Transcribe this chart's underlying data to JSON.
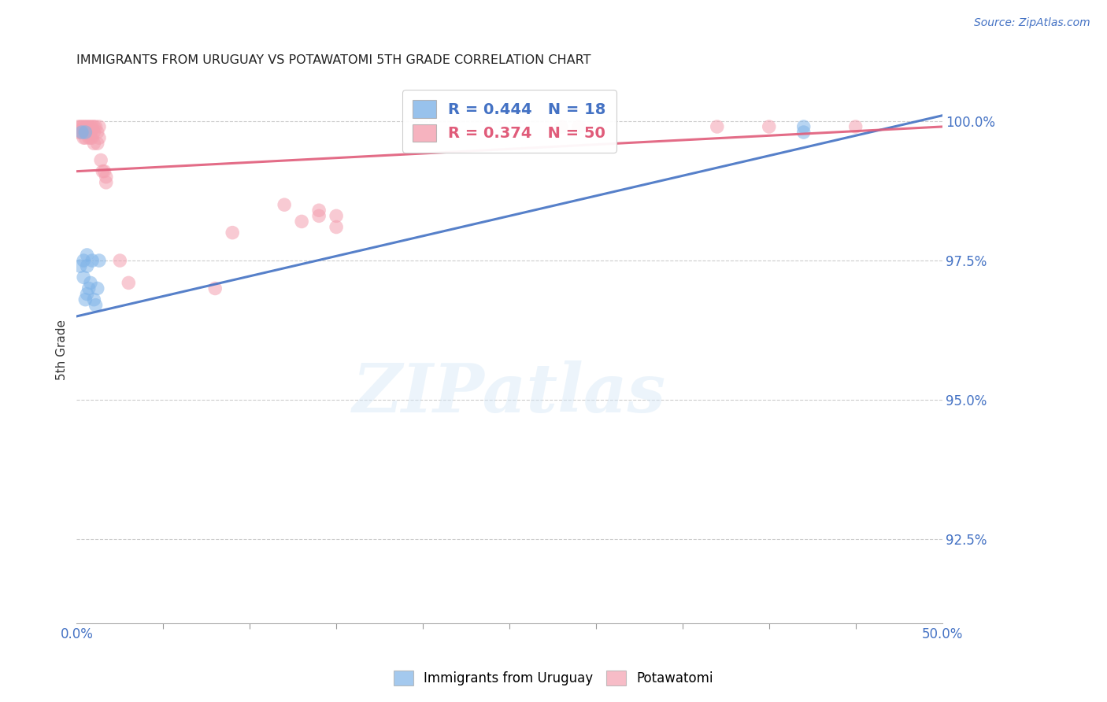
{
  "title": "IMMIGRANTS FROM URUGUAY VS POTAWATOMI 5TH GRADE CORRELATION CHART",
  "source": "Source: ZipAtlas.com",
  "ylabel": "5th Grade",
  "xlim": [
    0.0,
    0.5
  ],
  "ylim": [
    0.91,
    1.008
  ],
  "xtick_positions": [
    0.0,
    0.5
  ],
  "xtick_labels": [
    "0.0%",
    "50.0%"
  ],
  "ytick_positions": [
    0.925,
    0.95,
    0.975,
    1.0
  ],
  "ytick_labels": [
    "92.5%",
    "95.0%",
    "97.5%",
    "100.0%"
  ],
  "blue_color": "#7EB3E8",
  "pink_color": "#F4A0B0",
  "blue_line_color": "#4472C4",
  "pink_line_color": "#E05C7A",
  "legend_label_1": "R = 0.444   N = 18",
  "legend_label_2": "R = 0.374   N = 50",
  "watermark": "ZIPatlas",
  "background_color": "#FFFFFF",
  "grid_color": "#CCCCCC",
  "blue_scatter_x": [
    0.002,
    0.003,
    0.004,
    0.004,
    0.005,
    0.006,
    0.006,
    0.007,
    0.008,
    0.009,
    0.01,
    0.011,
    0.012,
    0.013,
    0.005,
    0.006,
    0.42,
    0.42
  ],
  "blue_scatter_y": [
    0.974,
    0.998,
    0.972,
    0.975,
    0.998,
    0.974,
    0.976,
    0.97,
    0.971,
    0.975,
    0.968,
    0.967,
    0.97,
    0.975,
    0.968,
    0.969,
    0.999,
    0.998
  ],
  "pink_scatter_x": [
    0.001,
    0.001,
    0.002,
    0.002,
    0.003,
    0.003,
    0.004,
    0.004,
    0.004,
    0.005,
    0.005,
    0.005,
    0.006,
    0.006,
    0.007,
    0.007,
    0.007,
    0.008,
    0.008,
    0.008,
    0.009,
    0.009,
    0.01,
    0.01,
    0.01,
    0.011,
    0.012,
    0.012,
    0.013,
    0.013,
    0.014,
    0.015,
    0.016,
    0.017,
    0.017,
    0.025,
    0.03,
    0.08,
    0.09,
    0.12,
    0.13,
    0.14,
    0.14,
    0.15,
    0.15,
    0.28,
    0.29,
    0.37,
    0.4,
    0.45
  ],
  "pink_scatter_y": [
    0.999,
    0.998,
    0.999,
    0.998,
    0.999,
    0.998,
    0.999,
    0.998,
    0.997,
    0.999,
    0.998,
    0.997,
    0.999,
    0.998,
    0.999,
    0.998,
    0.997,
    0.999,
    0.998,
    0.997,
    0.999,
    0.997,
    0.999,
    0.998,
    0.996,
    0.999,
    0.998,
    0.996,
    0.999,
    0.997,
    0.993,
    0.991,
    0.991,
    0.99,
    0.989,
    0.975,
    0.971,
    0.97,
    0.98,
    0.985,
    0.982,
    0.984,
    0.983,
    0.983,
    0.981,
    0.999,
    0.999,
    0.999,
    0.999,
    0.999
  ],
  "blue_line_x0": 0.0,
  "blue_line_y0": 0.965,
  "blue_line_x1": 0.5,
  "blue_line_y1": 1.001,
  "pink_line_x0": 0.0,
  "pink_line_y0": 0.991,
  "pink_line_x1": 0.5,
  "pink_line_y1": 0.999
}
